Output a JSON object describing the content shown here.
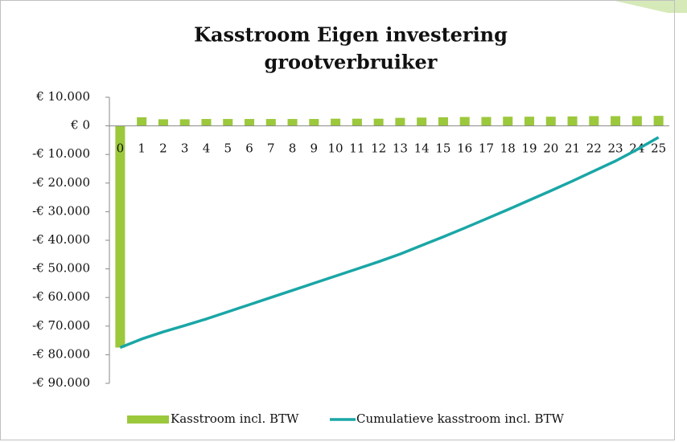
{
  "chart_data": {
    "type": "bar-line",
    "title": [
      "Kasstroom Eigen investering",
      "grootverbruiker"
    ],
    "categories": [
      "0",
      "1",
      "2",
      "3",
      "4",
      "5",
      "6",
      "7",
      "8",
      "9",
      "10",
      "11",
      "12",
      "13",
      "14",
      "15",
      "16",
      "17",
      "18",
      "19",
      "20",
      "21",
      "22",
      "23",
      "24",
      "25"
    ],
    "series": [
      {
        "name": "Kasstroom incl. BTW",
        "type": "bar",
        "color": "#9cc83c",
        "values": [
          -77500,
          3000,
          2300,
          2300,
          2400,
          2400,
          2400,
          2400,
          2400,
          2400,
          2500,
          2500,
          2500,
          2800,
          2900,
          3000,
          3100,
          3100,
          3200,
          3200,
          3200,
          3300,
          3400,
          3400,
          3400,
          3500
        ]
      },
      {
        "name": "Cumulatieve kasstroom incl. BTW",
        "type": "line",
        "color": "#1aa6a6",
        "values": [
          -77500,
          -74500,
          -72000,
          -69800,
          -67500,
          -65000,
          -62500,
          -60000,
          -57500,
          -55000,
          -52500,
          -50000,
          -47500,
          -44800,
          -41800,
          -38800,
          -35700,
          -32500,
          -29300,
          -26000,
          -22700,
          -19300,
          -15800,
          -12300,
          -8300,
          -4000
        ]
      }
    ],
    "ylim": [
      -90000,
      10000
    ],
    "yticks": [
      {
        "value": 10000,
        "label": "€ 10.000"
      },
      {
        "value": 0,
        "label": "€ 0"
      },
      {
        "value": -10000,
        "label": "-€ 10.000"
      },
      {
        "value": -20000,
        "label": "-€ 20.000"
      },
      {
        "value": -30000,
        "label": "-€ 30.000"
      },
      {
        "value": -40000,
        "label": "-€ 40.000"
      },
      {
        "value": -50000,
        "label": "-€ 50.000"
      },
      {
        "value": -60000,
        "label": "-€ 60.000"
      },
      {
        "value": -70000,
        "label": "-€ 70.000"
      },
      {
        "value": -80000,
        "label": "-€ 80.000"
      },
      {
        "value": -90000,
        "label": "-€ 90.000"
      }
    ],
    "grid": false,
    "legend": "bottom"
  }
}
